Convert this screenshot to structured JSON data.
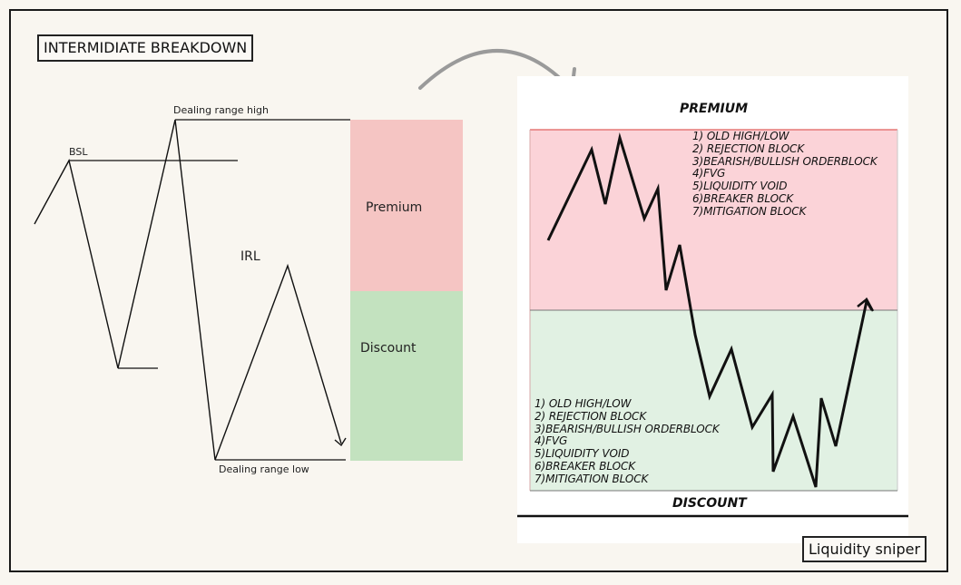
{
  "title": "INTERMIDIATE BREAKDOWN",
  "credit": "Liquidity sniper",
  "left_diagram": {
    "dealing_range_high": "Dealing range high",
    "dealing_range_low": "Dealing range low",
    "bsl": "BSL",
    "irl": "IRL",
    "premium_label": "Premium",
    "discount_label": "Discount"
  },
  "right_card": {
    "premium_title": "PREMIUM",
    "discount_title": "DISCOUNT",
    "premium_list": [
      "1) OLD HIGH/LOW",
      "2) REJECTION BLOCK",
      "3)BEARISH/BULLISH ORDERBLOCK",
      "4)FVG",
      "5)LIQUIDITY VOID",
      "6)BREAKER BLOCK",
      "7)MITIGATION BLOCK"
    ],
    "discount_list": [
      "1) OLD HIGH/LOW",
      "2) REJECTION BLOCK",
      "3)BEARISH/BULLISH ORDERBLOCK",
      "4)FVG",
      "5)LIQUIDITY VOID",
      "6)BREAKER BLOCK",
      "7)MITIGATION BLOCK"
    ]
  },
  "colors": {
    "premium_fill": "#f5c5c3",
    "discount_fill": "#c3e2bf",
    "card_premium_fill": "#fbd3d8",
    "card_discount_fill": "#e1f1e3",
    "card_border_red": "#e0605e",
    "arrow_gray": "#9a9a9a"
  }
}
